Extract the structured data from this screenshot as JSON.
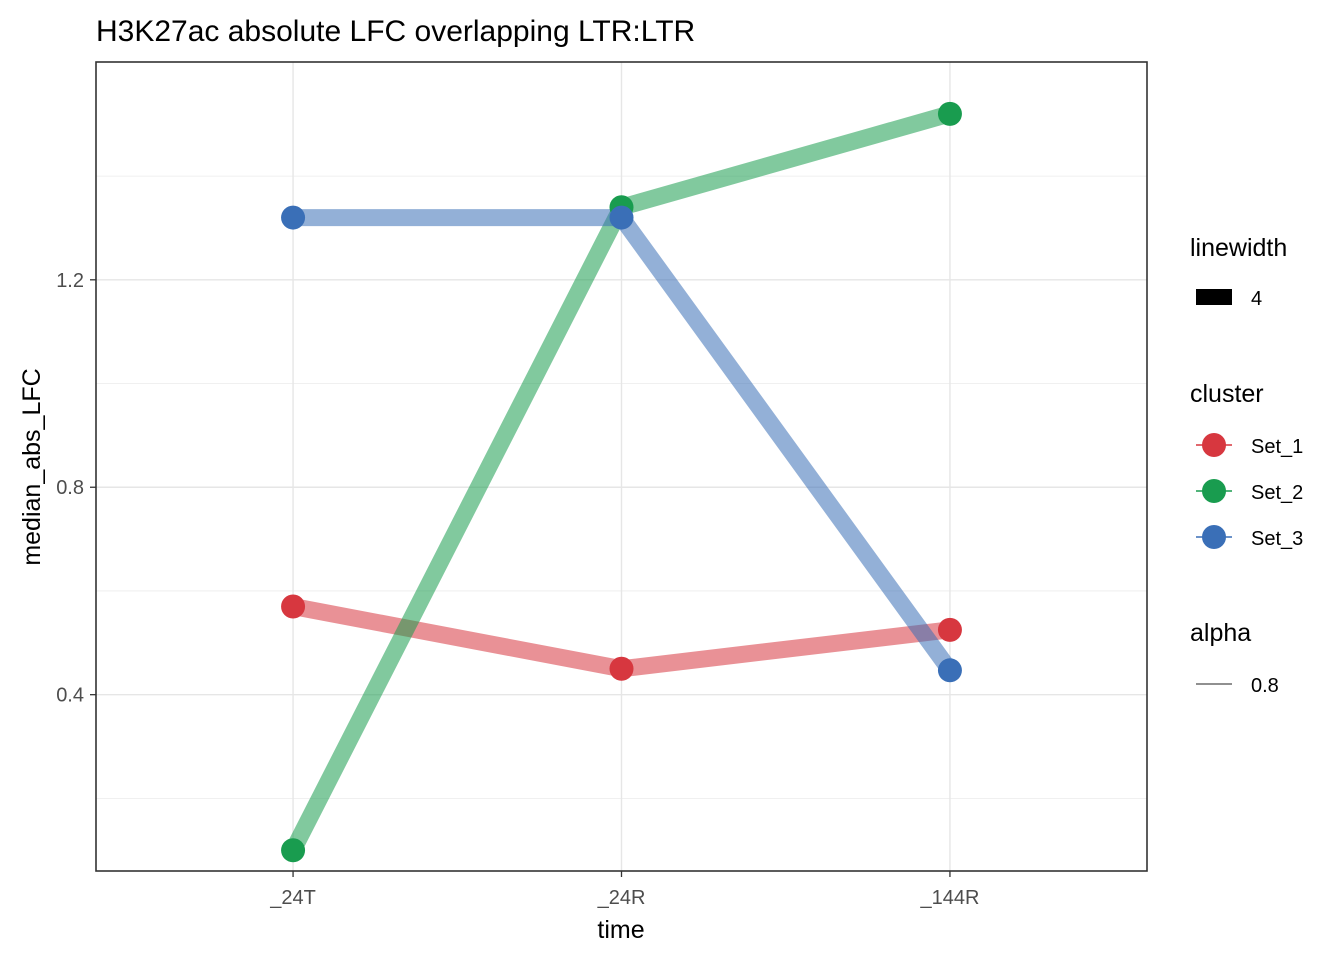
{
  "chart_data": {
    "type": "line",
    "title": "H3K27ac absolute LFC overlapping LTR:LTR",
    "xlabel": "time",
    "ylabel": "median_abs_LFC",
    "categories": [
      "_24T",
      "_24R",
      "_144R"
    ],
    "yticks": [
      0.4,
      0.8,
      1.2
    ],
    "ylim": [
      0.06,
      1.62
    ],
    "grid": true,
    "legend_placement": "right",
    "series": [
      {
        "name": "Set_1",
        "color": "#d7373f",
        "values": [
          0.57,
          0.45,
          0.525
        ]
      },
      {
        "name": "Set_2",
        "color": "#199c4f",
        "values": [
          0.1,
          1.34,
          1.52
        ]
      },
      {
        "name": "Set_3",
        "color": "#3a6fb7",
        "values": [
          1.32,
          1.32,
          0.447
        ]
      }
    ],
    "legends": {
      "linewidth": {
        "title": "linewidth",
        "label": "4"
      },
      "cluster": {
        "title": "cluster"
      },
      "alpha": {
        "title": "alpha",
        "label": "0.8"
      }
    }
  }
}
